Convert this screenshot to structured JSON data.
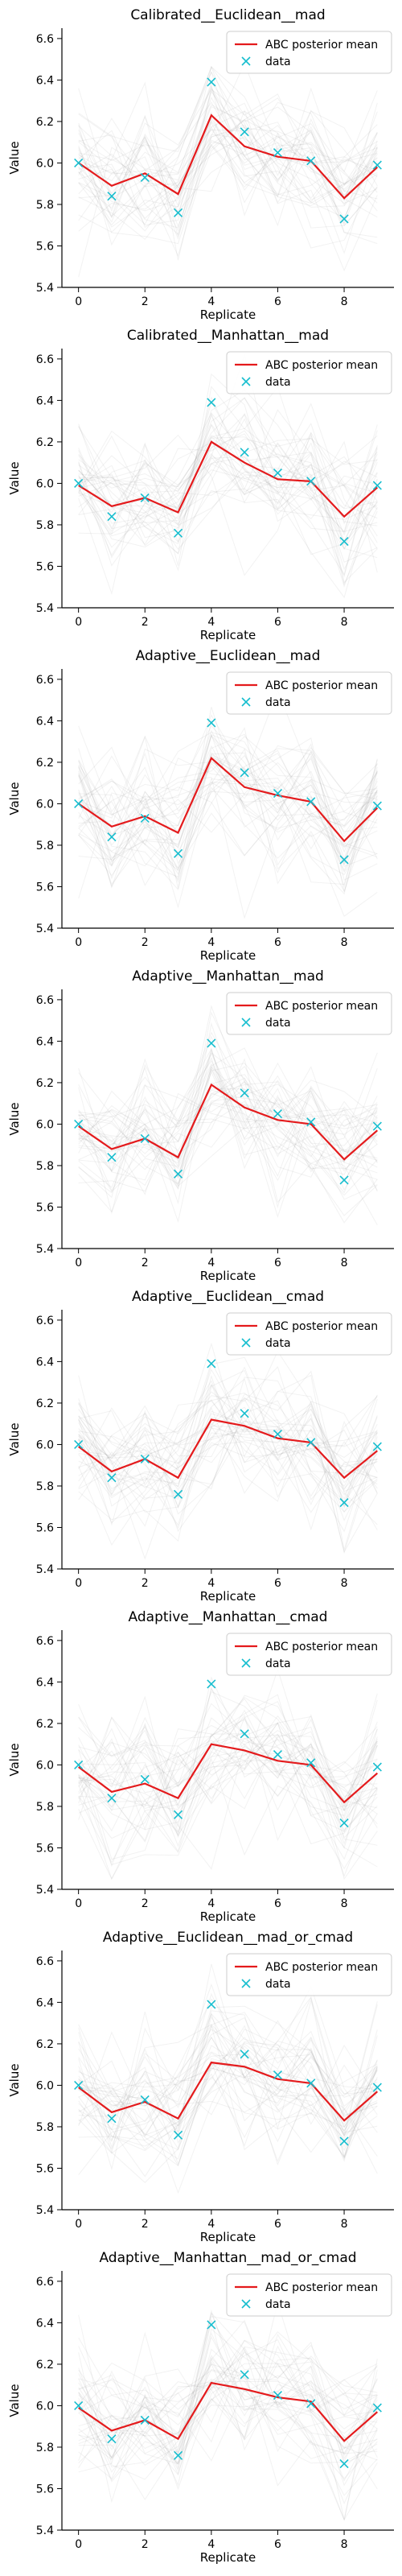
{
  "colors": {
    "mean_line": "#e41a1c",
    "data_marker": "#17becf",
    "sample_lines": "#9a9a9a",
    "axis": "#000000",
    "legend_border": "#cccccc"
  },
  "chart_data": [
    {
      "type": "line",
      "title": "Calibrated__Euclidean__mad",
      "xlabel": "Replicate",
      "ylabel": "Value",
      "xlim": [
        -0.5,
        9.5
      ],
      "ylim": [
        5.4,
        6.65
      ],
      "xticks": [
        0,
        2,
        4,
        6,
        8
      ],
      "yticks": [
        5.4,
        5.6,
        5.8,
        6.0,
        6.2,
        6.4,
        6.6
      ],
      "grid": false,
      "legend_position": "top-right",
      "x": [
        0,
        1,
        2,
        3,
        4,
        5,
        6,
        7,
        8,
        9
      ],
      "series": [
        {
          "name": "ABC posterior mean",
          "kind": "line",
          "values": [
            6.0,
            5.89,
            5.95,
            5.85,
            6.23,
            6.08,
            6.03,
            6.01,
            5.83,
            5.98
          ]
        },
        {
          "name": "data",
          "kind": "marker",
          "values": [
            6.0,
            5.84,
            5.93,
            5.76,
            6.39,
            6.15,
            6.05,
            6.01,
            5.73,
            5.99
          ]
        }
      ]
    },
    {
      "type": "line",
      "title": "Calibrated__Manhattan__mad",
      "xlabel": "Replicate",
      "ylabel": "Value",
      "xlim": [
        -0.5,
        9.5
      ],
      "ylim": [
        5.4,
        6.65
      ],
      "xticks": [
        0,
        2,
        4,
        6,
        8
      ],
      "yticks": [
        5.4,
        5.6,
        5.8,
        6.0,
        6.2,
        6.4,
        6.6
      ],
      "grid": false,
      "legend_position": "top-right",
      "x": [
        0,
        1,
        2,
        3,
        4,
        5,
        6,
        7,
        8,
        9
      ],
      "series": [
        {
          "name": "ABC posterior mean",
          "kind": "line",
          "values": [
            5.99,
            5.89,
            5.93,
            5.86,
            6.2,
            6.1,
            6.02,
            6.01,
            5.84,
            5.98
          ]
        },
        {
          "name": "data",
          "kind": "marker",
          "values": [
            6.0,
            5.84,
            5.93,
            5.76,
            6.39,
            6.15,
            6.05,
            6.01,
            5.72,
            5.99
          ]
        }
      ]
    },
    {
      "type": "line",
      "title": "Adaptive__Euclidean__mad",
      "xlabel": "Replicate",
      "ylabel": "Value",
      "xlim": [
        -0.5,
        9.5
      ],
      "ylim": [
        5.4,
        6.65
      ],
      "xticks": [
        0,
        2,
        4,
        6,
        8
      ],
      "yticks": [
        5.4,
        5.6,
        5.8,
        6.0,
        6.2,
        6.4,
        6.6
      ],
      "grid": false,
      "legend_position": "top-right",
      "x": [
        0,
        1,
        2,
        3,
        4,
        5,
        6,
        7,
        8,
        9
      ],
      "series": [
        {
          "name": "ABC posterior mean",
          "kind": "line",
          "values": [
            6.0,
            5.89,
            5.94,
            5.86,
            6.22,
            6.08,
            6.04,
            6.01,
            5.82,
            5.98
          ]
        },
        {
          "name": "data",
          "kind": "marker",
          "values": [
            6.0,
            5.84,
            5.93,
            5.76,
            6.39,
            6.15,
            6.05,
            6.01,
            5.73,
            5.99
          ]
        }
      ]
    },
    {
      "type": "line",
      "title": "Adaptive__Manhattan__mad",
      "xlabel": "Replicate",
      "ylabel": "Value",
      "xlim": [
        -0.5,
        9.5
      ],
      "ylim": [
        5.4,
        6.65
      ],
      "xticks": [
        0,
        2,
        4,
        6,
        8
      ],
      "yticks": [
        5.4,
        5.6,
        5.8,
        6.0,
        6.2,
        6.4,
        6.6
      ],
      "grid": false,
      "legend_position": "top-right",
      "x": [
        0,
        1,
        2,
        3,
        4,
        5,
        6,
        7,
        8,
        9
      ],
      "series": [
        {
          "name": "ABC posterior mean",
          "kind": "line",
          "values": [
            5.99,
            5.88,
            5.93,
            5.84,
            6.19,
            6.08,
            6.02,
            6.0,
            5.83,
            5.97
          ]
        },
        {
          "name": "data",
          "kind": "marker",
          "values": [
            6.0,
            5.84,
            5.93,
            5.76,
            6.39,
            6.15,
            6.05,
            6.01,
            5.73,
            5.99
          ]
        }
      ]
    },
    {
      "type": "line",
      "title": "Adaptive__Euclidean__cmad",
      "xlabel": "Replicate",
      "ylabel": "Value",
      "xlim": [
        -0.5,
        9.5
      ],
      "ylim": [
        5.4,
        6.65
      ],
      "xticks": [
        0,
        2,
        4,
        6,
        8
      ],
      "yticks": [
        5.4,
        5.6,
        5.8,
        6.0,
        6.2,
        6.4,
        6.6
      ],
      "grid": false,
      "legend_position": "top-right",
      "x": [
        0,
        1,
        2,
        3,
        4,
        5,
        6,
        7,
        8,
        9
      ],
      "series": [
        {
          "name": "ABC posterior mean",
          "kind": "line",
          "values": [
            5.99,
            5.87,
            5.93,
            5.84,
            6.12,
            6.09,
            6.03,
            6.01,
            5.84,
            5.97
          ]
        },
        {
          "name": "data",
          "kind": "marker",
          "values": [
            6.0,
            5.84,
            5.93,
            5.76,
            6.39,
            6.15,
            6.05,
            6.01,
            5.72,
            5.99
          ]
        }
      ]
    },
    {
      "type": "line",
      "title": "Adaptive__Manhattan__cmad",
      "xlabel": "Replicate",
      "ylabel": "Value",
      "xlim": [
        -0.5,
        9.5
      ],
      "ylim": [
        5.4,
        6.65
      ],
      "xticks": [
        0,
        2,
        4,
        6,
        8
      ],
      "yticks": [
        5.4,
        5.6,
        5.8,
        6.0,
        6.2,
        6.4,
        6.6
      ],
      "grid": false,
      "legend_position": "top-right",
      "x": [
        0,
        1,
        2,
        3,
        4,
        5,
        6,
        7,
        8,
        9
      ],
      "series": [
        {
          "name": "ABC posterior mean",
          "kind": "line",
          "values": [
            5.99,
            5.87,
            5.91,
            5.84,
            6.1,
            6.07,
            6.02,
            6.0,
            5.82,
            5.96
          ]
        },
        {
          "name": "data",
          "kind": "marker",
          "values": [
            6.0,
            5.84,
            5.93,
            5.76,
            6.39,
            6.15,
            6.05,
            6.01,
            5.72,
            5.99
          ]
        }
      ]
    },
    {
      "type": "line",
      "title": "Adaptive__Euclidean__mad_or_cmad",
      "xlabel": "Replicate",
      "ylabel": "Value",
      "xlim": [
        -0.5,
        9.5
      ],
      "ylim": [
        5.4,
        6.65
      ],
      "xticks": [
        0,
        2,
        4,
        6,
        8
      ],
      "yticks": [
        5.4,
        5.6,
        5.8,
        6.0,
        6.2,
        6.4,
        6.6
      ],
      "grid": false,
      "legend_position": "top-right",
      "x": [
        0,
        1,
        2,
        3,
        4,
        5,
        6,
        7,
        8,
        9
      ],
      "series": [
        {
          "name": "ABC posterior mean",
          "kind": "line",
          "values": [
            5.99,
            5.87,
            5.92,
            5.84,
            6.11,
            6.09,
            6.03,
            6.01,
            5.83,
            5.97
          ]
        },
        {
          "name": "data",
          "kind": "marker",
          "values": [
            6.0,
            5.84,
            5.93,
            5.76,
            6.39,
            6.15,
            6.05,
            6.01,
            5.73,
            5.99
          ]
        }
      ]
    },
    {
      "type": "line",
      "title": "Adaptive__Manhattan__mad_or_cmad",
      "xlabel": "Replicate",
      "ylabel": "Value",
      "xlim": [
        -0.5,
        9.5
      ],
      "ylim": [
        5.4,
        6.65
      ],
      "xticks": [
        0,
        2,
        4,
        6,
        8
      ],
      "yticks": [
        5.4,
        5.6,
        5.8,
        6.0,
        6.2,
        6.4,
        6.6
      ],
      "grid": false,
      "legend_position": "top-right",
      "x": [
        0,
        1,
        2,
        3,
        4,
        5,
        6,
        7,
        8,
        9
      ],
      "series": [
        {
          "name": "ABC posterior mean",
          "kind": "line",
          "values": [
            5.99,
            5.88,
            5.93,
            5.84,
            6.11,
            6.08,
            6.04,
            6.02,
            5.83,
            5.97
          ]
        },
        {
          "name": "data",
          "kind": "marker",
          "values": [
            6.0,
            5.84,
            5.93,
            5.76,
            6.39,
            6.15,
            6.05,
            6.01,
            5.72,
            5.99
          ]
        }
      ]
    }
  ]
}
